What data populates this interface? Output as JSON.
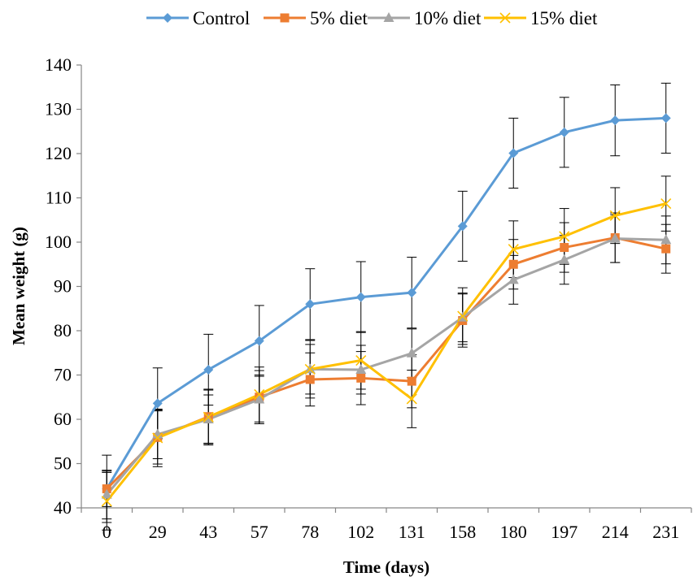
{
  "chart_data": {
    "type": "line",
    "xlabel": "Time (days)",
    "ylabel": "Mean weight (g)",
    "categories": [
      "0",
      "29",
      "43",
      "57",
      "78",
      "102",
      "131",
      "158",
      "180",
      "197",
      "214",
      "231"
    ],
    "ylim": [
      40,
      140
    ],
    "yticks": [
      40,
      50,
      60,
      70,
      80,
      90,
      100,
      110,
      120,
      130,
      140
    ],
    "grid": false,
    "legend_position": "top",
    "error_bars": true,
    "series": [
      {
        "name": "Control",
        "color": "#5b9bd5",
        "marker": "diamond",
        "values": [
          44.3,
          63.6,
          71.2,
          77.7,
          86.0,
          87.6,
          88.6,
          103.6,
          120.1,
          124.8,
          127.5,
          128.0
        ],
        "errors": [
          7.6,
          8.0,
          8.0,
          8.0,
          8.0,
          8.0,
          8.0,
          7.9,
          7.9,
          7.9,
          8.0,
          7.9
        ]
      },
      {
        "name": "5% diet",
        "color": "#ed7d31",
        "marker": "square",
        "values": [
          44.3,
          55.9,
          60.6,
          65.0,
          69.0,
          69.3,
          68.6,
          82.3,
          95.0,
          98.8,
          101.0,
          98.5
        ],
        "errors": [
          4.0,
          6.0,
          6.0,
          6.0,
          6.0,
          6.0,
          6.0,
          6.0,
          5.6,
          5.6,
          5.6,
          5.5
        ]
      },
      {
        "name": "10% diet",
        "color": "#a5a5a5",
        "marker": "triangle",
        "values": [
          43.0,
          56.6,
          60.0,
          64.5,
          71.3,
          71.2,
          74.9,
          83.0,
          91.5,
          96.0,
          100.8,
          100.5
        ],
        "errors": [
          5.5,
          5.5,
          5.5,
          5.5,
          5.6,
          5.5,
          5.5,
          5.5,
          5.5,
          5.5,
          5.4,
          5.4
        ]
      },
      {
        "name": "15% diet",
        "color": "#ffc000",
        "marker": "x",
        "values": [
          41.5,
          55.8,
          60.5,
          65.6,
          71.3,
          73.3,
          64.6,
          83.3,
          98.4,
          101.3,
          106.0,
          108.7
        ],
        "errors": [
          6.5,
          6.5,
          6.3,
          6.2,
          6.5,
          6.5,
          6.5,
          6.4,
          6.4,
          6.3,
          6.3,
          6.2
        ]
      }
    ]
  }
}
